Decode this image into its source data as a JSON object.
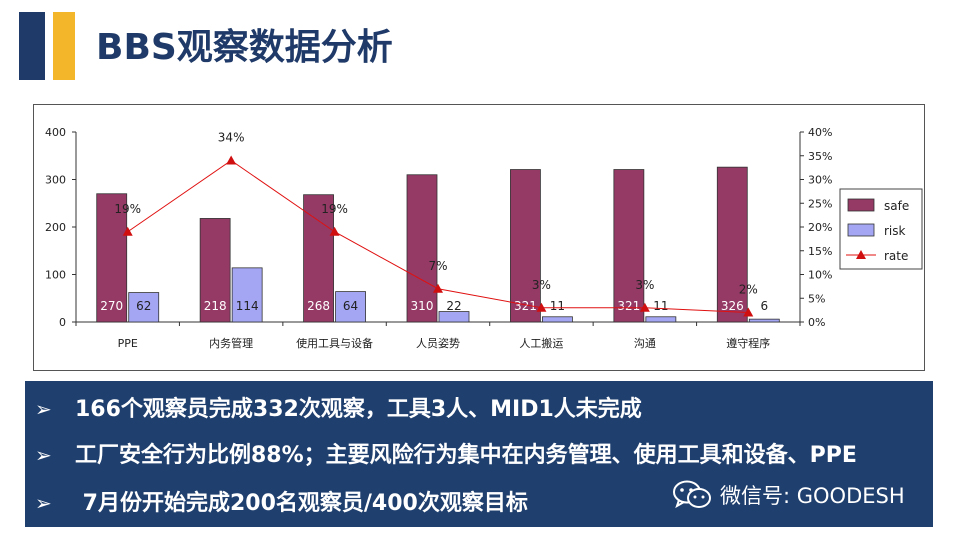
{
  "header": {
    "title": "BBS观察数据分析",
    "accent_colors": [
      "#1f3a68",
      "#f3b52a"
    ]
  },
  "chart_data": {
    "type": "bar",
    "categories": [
      "PPE",
      "内务管理",
      "使用工具与设备",
      "人员姿势",
      "人工搬运",
      "沟通",
      "遵守程序"
    ],
    "series": [
      {
        "name": "safe",
        "values": [
          270,
          218,
          268,
          310,
          321,
          321,
          326
        ],
        "color": "#943a65",
        "axis": "left",
        "kind": "bar"
      },
      {
        "name": "risk",
        "values": [
          62,
          114,
          64,
          22,
          11,
          11,
          6
        ],
        "color": "#a4a6f4",
        "axis": "left",
        "kind": "bar"
      },
      {
        "name": "rate",
        "values": [
          19,
          34,
          19,
          7,
          3,
          3,
          2
        ],
        "labels": [
          "19%",
          "34%",
          "19%",
          "7%",
          "3%",
          "3%",
          "2%"
        ],
        "color": "#e01010",
        "axis": "right",
        "kind": "line"
      }
    ],
    "ylim": [
      0,
      400
    ],
    "yticks": [
      "0",
      "100",
      "200",
      "300",
      "400"
    ],
    "y2lim": [
      0,
      40
    ],
    "y2ticks": [
      "0%",
      "5%",
      "10%",
      "15%",
      "20%",
      "25%",
      "30%",
      "35%",
      "40%"
    ],
    "legend_position": "right",
    "grid": false
  },
  "bullets": [
    {
      "arrow": "➢",
      "text": "166个观察员完成332次观察，工具3人、MID1人未完成"
    },
    {
      "arrow": "➢",
      "text": "工厂安全行为比例88%；主要风险行为集中在内务管理、使用工具和设备、PPE"
    },
    {
      "arrow": "➢",
      "text": " 7月份开始完成200名观察员/400次观察目标"
    }
  ],
  "watermark": {
    "text": "微信号: GOODESH",
    "icon": "wechat-icon"
  }
}
